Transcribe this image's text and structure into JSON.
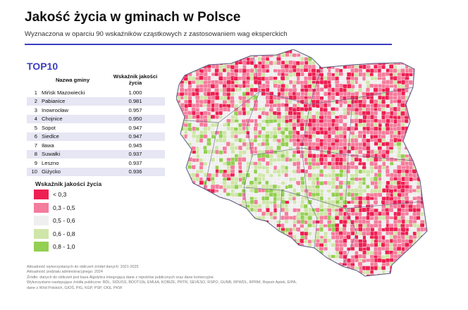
{
  "title": "Jakość życia w gminach w Polsce",
  "subtitle": "Wyznaczona w oparciu 90 wskaźników cząstkowych z zastosowaniem wag eksperckich",
  "top10": {
    "heading": "TOP10",
    "columns": [
      "Nazwa gminy",
      "Wskaźnik jakości życia"
    ],
    "rows": [
      {
        "rank": "1",
        "name": "Mińsk Mazowiecki",
        "value": "1.000"
      },
      {
        "rank": "2",
        "name": "Pabianice",
        "value": "0.981"
      },
      {
        "rank": "3",
        "name": "Inowrocław",
        "value": "0.957"
      },
      {
        "rank": "4",
        "name": "Chojnice",
        "value": "0.950"
      },
      {
        "rank": "5",
        "name": "Sopot",
        "value": "0.947"
      },
      {
        "rank": "6",
        "name": "Siedlce",
        "value": "0.947"
      },
      {
        "rank": "7",
        "name": "Iława",
        "value": "0.945"
      },
      {
        "rank": "8",
        "name": "Suwałki",
        "value": "0.937"
      },
      {
        "rank": "9",
        "name": "Leszno",
        "value": "0.937"
      },
      {
        "rank": "10",
        "name": "Giżycko",
        "value": "0.936"
      }
    ]
  },
  "legend": {
    "title": "Wskaźnik jakości życia",
    "items": [
      {
        "label": "< 0,3",
        "color": "#ee1f52"
      },
      {
        "label": "0,3 - 0,5",
        "color": "#f47c9c"
      },
      {
        "label": "0,5 - 0,6",
        "color": "#efefef"
      },
      {
        "label": "0,6 - 0,8",
        "color": "#cfe6a9"
      },
      {
        "label": "0,8 - 1,0",
        "color": "#93cf52"
      }
    ]
  },
  "map": {
    "outline_color": "#5a5a82"
  },
  "footer": [
    "Aktualność wykorzystanych do obliczeń źródeł danych: 2021-2025",
    "Aktualność podziału administracyjnego: 2024",
    "Źródło: danych do obliczeń jest baza Algolytics integrująca dane z rejestrów publicznych oraz dane komercyjne.",
    "Wykorzystano następujące źródła publiczne: BDL, SIDUSS, BDOT10k, EMUiA, KOBIZE, PRTR, SEVESO, RSPO, GUNB, RPWDL, RPRM, Rejestr Aptek, EIPA,",
    "dane z Wód Polskich, GIOŚ, PIG, KGP, PSP, CKE, PKW"
  ]
}
